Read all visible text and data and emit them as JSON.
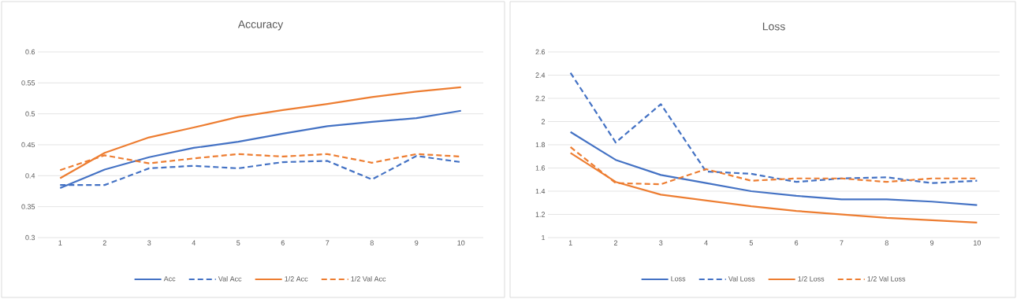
{
  "chart_data": [
    {
      "type": "line",
      "title": "Accuracy",
      "categories": [
        "1",
        "2",
        "3",
        "4",
        "5",
        "6",
        "7",
        "8",
        "9",
        "10"
      ],
      "ylim": [
        0.3,
        0.6
      ],
      "yticks": [
        0.3,
        0.35,
        0.4,
        0.45,
        0.5,
        0.55,
        0.6
      ],
      "grid": "y",
      "legend": "bottom",
      "series": [
        {
          "name": "Acc",
          "color": "#4472c4",
          "line_style": "solid",
          "values": [
            0.38,
            0.41,
            0.43,
            0.445,
            0.455,
            0.468,
            0.48,
            0.487,
            0.493,
            0.505
          ]
        },
        {
          "name": "Val Acc",
          "color": "#4472c4",
          "line_style": "dashed",
          "values": [
            0.385,
            0.385,
            0.412,
            0.416,
            0.412,
            0.422,
            0.424,
            0.394,
            0.432,
            0.422
          ]
        },
        {
          "name": "1/2 Acc",
          "color": "#ed7d31",
          "line_style": "solid",
          "values": [
            0.396,
            0.437,
            0.462,
            0.478,
            0.495,
            0.506,
            0.516,
            0.527,
            0.536,
            0.543
          ]
        },
        {
          "name": "1/2 Val Acc",
          "color": "#ed7d31",
          "line_style": "dashed",
          "values": [
            0.409,
            0.433,
            0.42,
            0.428,
            0.435,
            0.431,
            0.435,
            0.421,
            0.435,
            0.431
          ]
        }
      ]
    },
    {
      "type": "line",
      "title": "Loss",
      "categories": [
        "1",
        "2",
        "3",
        "4",
        "5",
        "6",
        "7",
        "8",
        "9",
        "10"
      ],
      "ylim": [
        1,
        2.6
      ],
      "yticks": [
        1,
        1.2,
        1.4,
        1.6,
        1.8,
        2,
        2.2,
        2.4,
        2.6
      ],
      "grid": "y",
      "legend": "bottom",
      "series": [
        {
          "name": "Loss",
          "color": "#4472c4",
          "line_style": "solid",
          "values": [
            1.91,
            1.67,
            1.54,
            1.47,
            1.4,
            1.36,
            1.33,
            1.33,
            1.31,
            1.28
          ]
        },
        {
          "name": "Val Loss",
          "color": "#4472c4",
          "line_style": "dashed",
          "values": [
            2.42,
            1.82,
            2.15,
            1.57,
            1.55,
            1.48,
            1.51,
            1.52,
            1.47,
            1.49
          ]
        },
        {
          "name": "1/2 Loss",
          "color": "#ed7d31",
          "line_style": "solid",
          "values": [
            1.73,
            1.48,
            1.37,
            1.32,
            1.27,
            1.23,
            1.2,
            1.17,
            1.15,
            1.13
          ]
        },
        {
          "name": "1/2 Val Loss",
          "color": "#ed7d31",
          "line_style": "dashed",
          "values": [
            1.78,
            1.47,
            1.46,
            1.59,
            1.49,
            1.51,
            1.51,
            1.48,
            1.51,
            1.51
          ]
        }
      ]
    }
  ]
}
